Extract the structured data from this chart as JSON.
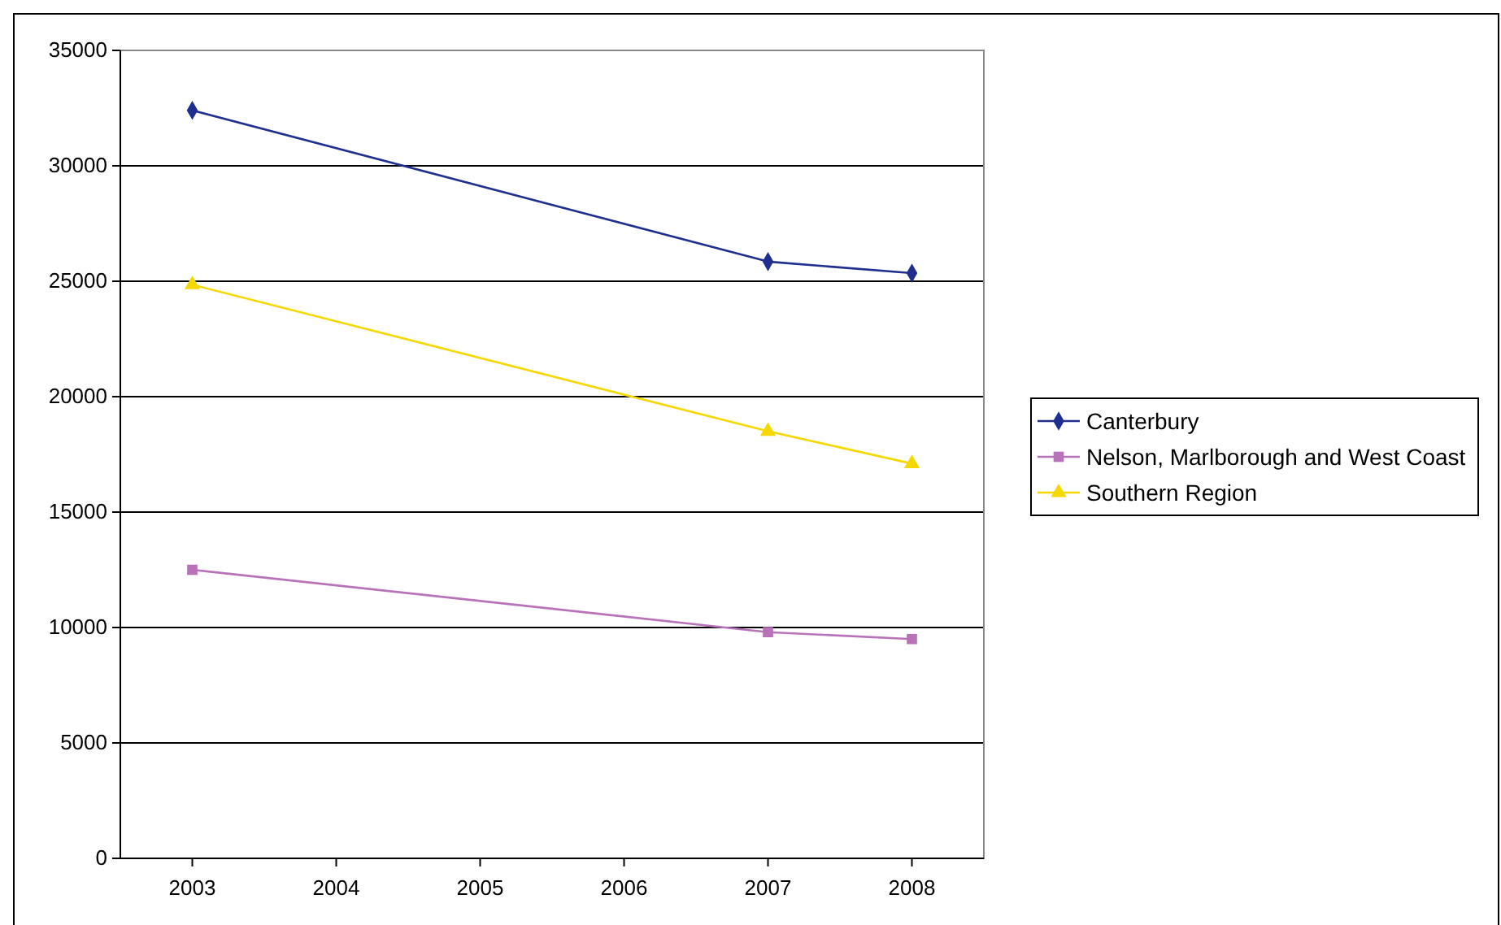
{
  "chart_data": {
    "type": "line",
    "x": [
      2003,
      2007,
      2008
    ],
    "xlim": [
      2002.5,
      2008.5
    ],
    "xticks": [
      2003,
      2004,
      2005,
      2006,
      2007,
      2008
    ],
    "ylim": [
      0,
      35000
    ],
    "yticks": [
      0,
      5000,
      10000,
      15000,
      20000,
      25000,
      30000,
      35000
    ],
    "grid": "y",
    "legend": "right",
    "series": [
      {
        "name": "Canterbury",
        "color": "#1f2f8f",
        "marker": "diamond",
        "values": [
          32400,
          25850,
          25350
        ]
      },
      {
        "name": "Nelson, Marlborough and West Coast",
        "color": "#b873b8",
        "marker": "square",
        "values": [
          12500,
          9800,
          9500
        ]
      },
      {
        "name": "Southern Region",
        "color": "#f5d800",
        "marker": "triangle",
        "values": [
          24850,
          18500,
          17100
        ]
      }
    ]
  }
}
